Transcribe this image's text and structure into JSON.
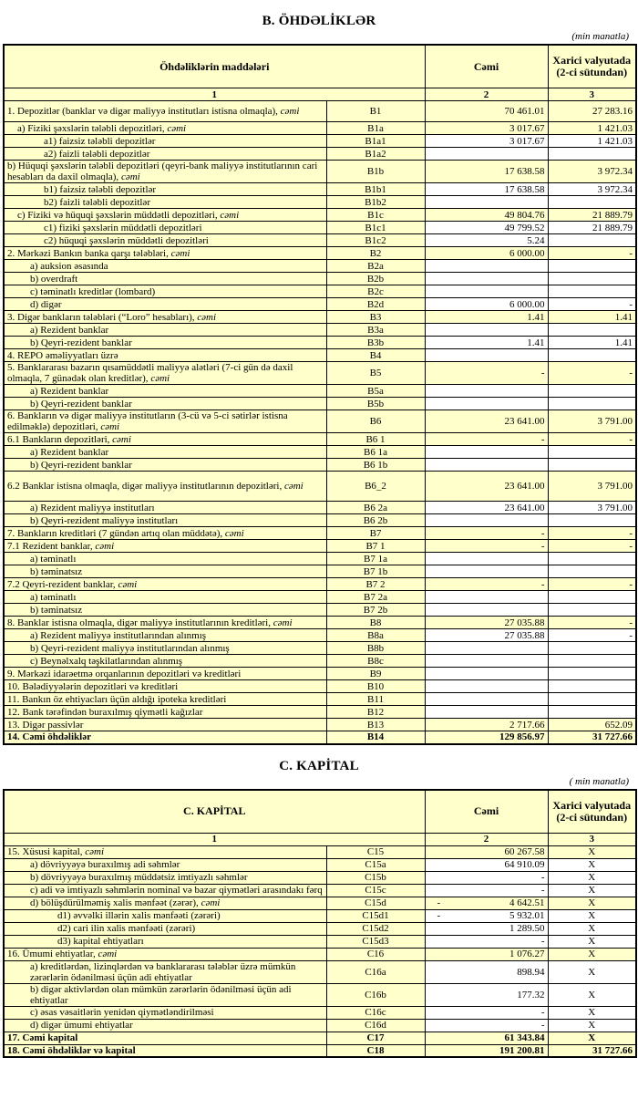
{
  "section_b": {
    "title": "B. ÖHDƏLİKLƏR",
    "unit_note": "(min manatla)",
    "columns": {
      "items": "Öhdəliklərin maddələri",
      "total": "Cəmi",
      "foreign": "Xarici valyutada (2-ci sütundan)",
      "num_items": "1",
      "num_total": "2",
      "num_foreign": "3"
    },
    "rows": [
      {
        "label": "1. Depozitlər (banklar və digər maliyyə institutları istisna olmaqla), ",
        "em": "cəmi",
        "code": "B1",
        "total": "70 461.01",
        "foreign": "27 283.16",
        "white": false,
        "indent": 0,
        "pad": 1
      },
      {
        "label": "a)  Fiziki şəxslərin tələbli depozitləri, ",
        "em": "cəmi",
        "code": "B1a",
        "total": "3 017.67",
        "foreign": "1 421.03",
        "white": false,
        "indent": 1
      },
      {
        "label": "a1) faizsiz tələbli depozitlər",
        "em": "",
        "code": "B1a1",
        "total": "3 017.67",
        "foreign": "1 421.03",
        "white": true,
        "indent": 3
      },
      {
        "label": "a2) faizli tələbli depozitlər",
        "em": "",
        "code": "B1a2",
        "total": "",
        "foreign": "",
        "white": true,
        "indent": 3
      },
      {
        "label": "b) Hüquqi şəxslərin tələbli depozitləri (qeyri-bank maliyyə institutlarının cari hesabları da daxil olmaqla), ",
        "em": "cəmi",
        "code": "B1b",
        "total": "17 638.58",
        "foreign": "3 972.34",
        "white": false,
        "indent": 0
      },
      {
        "label": "b1) faizsiz tələbli depozitlər",
        "em": "",
        "code": "B1b1",
        "total": "17 638.58",
        "foreign": "3 972.34",
        "white": true,
        "indent": 3
      },
      {
        "label": "b2) faizli tələbli depozitlər",
        "em": "",
        "code": "B1b2",
        "total": "",
        "foreign": "",
        "white": true,
        "indent": 3
      },
      {
        "label": "c) Fiziki və hüquqi şəxslərin müddətli depozitləri, ",
        "em": "cəmi",
        "code": "B1c",
        "total": "49 804.76",
        "foreign": "21 889.79",
        "white": false,
        "indent": 1
      },
      {
        "label": "c1) fiziki şəxslərin müddətli depozitləri",
        "em": "",
        "code": "B1c1",
        "total": "49 799.52",
        "foreign": "21 889.79",
        "white": true,
        "indent": 3
      },
      {
        "label": "c2) hüquqi şəxslərin müddətli depozitləri",
        "em": "",
        "code": "B1c2",
        "total": "5.24",
        "foreign": "",
        "white": true,
        "indent": 3
      },
      {
        "label": "2. Mərkəzi Bankın banka qarşı tələbləri, ",
        "em": "cəmi",
        "code": "B2",
        "total": "6 000.00",
        "foreign": "-",
        "white": false,
        "indent": 0
      },
      {
        "label": "a) auksion əsasında",
        "em": "",
        "code": "B2a",
        "total": "",
        "foreign": "",
        "white": true,
        "indent": 2
      },
      {
        "label": "b) overdraft",
        "em": "",
        "code": "B2b",
        "total": "",
        "foreign": "",
        "white": true,
        "indent": 2
      },
      {
        "label": "c) təminatlı kreditlər (lombard)",
        "em": "",
        "code": "B2c",
        "total": "",
        "foreign": "",
        "white": true,
        "indent": 2
      },
      {
        "label": "d) digər",
        "em": "",
        "code": "B2d",
        "total": "6 000.00",
        "foreign": "-",
        "white": true,
        "indent": 2
      },
      {
        "label": "3. Digər bankların tələbləri (“Loro” hesabları), ",
        "em": "cəmi",
        "code": "B3",
        "total": "1.41",
        "foreign": "1.41",
        "white": false,
        "indent": 0
      },
      {
        "label": "a) Rezident banklar",
        "em": "",
        "code": "B3a",
        "total": "",
        "foreign": "",
        "white": true,
        "indent": 2
      },
      {
        "label": "b) Qeyri-rezident banklar",
        "em": "",
        "code": "B3b",
        "total": "1.41",
        "foreign": "1.41",
        "white": true,
        "indent": 2
      },
      {
        "label": "4. REPO əməliyyatları  üzrə",
        "em": "",
        "code": "B4",
        "total": "",
        "foreign": "",
        "white": true,
        "indent": 0
      },
      {
        "label": "5. Banklararası bazarın qısamüddətli maliyyə alətləri (7-ci gün də daxil olmaqla, 7 günədək olan kreditlər), ",
        "em": "cəmi",
        "code": "B5",
        "total": "-",
        "foreign": "-",
        "white": false,
        "indent": 0
      },
      {
        "label": "a) Rezident banklar",
        "em": "",
        "code": "B5a",
        "total": "",
        "foreign": "",
        "white": true,
        "indent": 2
      },
      {
        "label": "b) Qeyri-rezident banklar",
        "em": "",
        "code": "B5b",
        "total": "",
        "foreign": "",
        "white": true,
        "indent": 2
      },
      {
        "label": "6. Bankların və digər maliyyə institutların (3-cü və 5-ci sətirlər istisna edilməklə) depozitləri, ",
        "em": "cəmi",
        "code": "B6",
        "total": "23 641.00",
        "foreign": "3 791.00",
        "white": false,
        "indent": 0
      },
      {
        "label": "6.1  Bankların depozitləri, ",
        "em": "cəmi",
        "code": "B6 1",
        "total": "-",
        "foreign": "-",
        "white": false,
        "indent": 0
      },
      {
        "label": "a) Rezident banklar",
        "em": "",
        "code": "B6 1a",
        "total": "",
        "foreign": "",
        "white": true,
        "indent": 2
      },
      {
        "label": "b) Qeyri-rezident banklar",
        "em": "",
        "code": "B6 1b",
        "total": "",
        "foreign": "",
        "white": true,
        "indent": 2
      },
      {
        "label": "6.2 Banklar istisna olmaqla, digər maliyyə institutlarının depozitləri, ",
        "em": "cəmi",
        "code": "B6_2",
        "total": "23 641.00",
        "foreign": "3 791.00",
        "white": false,
        "indent": 0,
        "pad": 2
      },
      {
        "label": "a) Rezident maliyyə institutları",
        "em": "",
        "code": "B6 2a",
        "total": "23 641.00",
        "foreign": "3 791.00",
        "white": true,
        "indent": 2
      },
      {
        "label": "b) Qeyri-rezident maliyyə institutları",
        "em": "",
        "code": "B6 2b",
        "total": "",
        "foreign": "",
        "white": true,
        "indent": 2
      },
      {
        "label": "7. Bankların kreditləri (7 gündən artıq olan müddətə), ",
        "em": "cəmi",
        "code": "B7",
        "total": "-",
        "foreign": "-",
        "white": false,
        "indent": 0
      },
      {
        "label": "7.1 Rezident banklar, ",
        "em": "cəmi",
        "code": "B7 1",
        "total": "-",
        "foreign": "-",
        "white": false,
        "indent": 0
      },
      {
        "label": "a) təminatlı",
        "em": "",
        "code": "B7 1a",
        "total": "",
        "foreign": "",
        "white": true,
        "indent": 2
      },
      {
        "label": "b) təminatsız",
        "em": "",
        "code": "B7 1b",
        "total": "",
        "foreign": "",
        "white": true,
        "indent": 2
      },
      {
        "label": "7.2 Qeyri-rezident banklar, ",
        "em": "cəmi",
        "code": "B7 2",
        "total": "-",
        "foreign": "-",
        "white": false,
        "indent": 0
      },
      {
        "label": "a) təminatlı",
        "em": "",
        "code": "B7 2a",
        "total": "",
        "foreign": "",
        "white": true,
        "indent": 2
      },
      {
        "label": "b) təminatsız",
        "em": "",
        "code": "B7 2b",
        "total": "",
        "foreign": "",
        "white": true,
        "indent": 2
      },
      {
        "label": "8. Banklar istisna olmaqla, digər maliyyə institutlarının kreditləri, ",
        "em": "cəmi",
        "code": "B8",
        "total": "27 035.88",
        "foreign": "-",
        "white": false,
        "indent": 0
      },
      {
        "label": "a) Rezident maliyyə institutlarından alınmış",
        "em": "",
        "code": "B8a",
        "total": "27 035.88",
        "foreign": "-",
        "white": true,
        "indent": 2
      },
      {
        "label": "b) Qeyri-rezident maliyyə institutlarından alınmış",
        "em": "",
        "code": "B8b",
        "total": "",
        "foreign": "",
        "white": true,
        "indent": 2
      },
      {
        "label": "c) Beynəlxalq təşkilatlarından alınmış",
        "em": "",
        "code": "B8c",
        "total": "",
        "foreign": "",
        "white": true,
        "indent": 2
      },
      {
        "label": "9. Mərkəzi idarəetmə orqanlarının depozitləri və kreditləri",
        "em": "",
        "code": "B9",
        "total": "",
        "foreign": "",
        "white": true,
        "indent": 0
      },
      {
        "label": "10. Bələdiyyələrin depozitləri və kreditləri",
        "em": "",
        "code": "B10",
        "total": "",
        "foreign": "",
        "white": true,
        "indent": 0
      },
      {
        "label": "11. Bankın öz ehtiyacları üçün aldığı ipoteka kreditləri",
        "em": "",
        "code": "B11",
        "total": "",
        "foreign": "",
        "white": true,
        "indent": 0
      },
      {
        "label": "12. Bank tərəfindən buraxılmış qiymətli kağızlar",
        "em": "",
        "code": "B12",
        "total": "",
        "foreign": "",
        "white": true,
        "indent": 0
      },
      {
        "label": "13. Digər passivlər",
        "em": "",
        "code": "B13",
        "total": "2 717.66",
        "foreign": "652.09",
        "white": false,
        "indent": 0
      },
      {
        "label": "14. Cəmi öhdəliklər",
        "em": "",
        "code": "B14",
        "total": "129 856.97",
        "foreign": "31 727.66",
        "white": false,
        "indent": 0,
        "bold": true
      }
    ]
  },
  "section_c": {
    "title": "C. KAPİTAL",
    "unit_note": "( min manatla)",
    "columns": {
      "items": "C. KAPİTAL",
      "total": "Cəmi",
      "foreign": "Xarici valyutada (2-ci sütundan)",
      "num_items": "1",
      "num_total": "2",
      "num_foreign": "3"
    },
    "rows": [
      {
        "label": "15. Xüsusi kapital, ",
        "em": "cəmi",
        "code": "C15",
        "total": "60 267.58",
        "foreign": "X",
        "white": false,
        "indent": 0
      },
      {
        "label": "a) dövriyyəyə buraxılmış adi səhmlər",
        "em": "",
        "code": "C15a",
        "total": "64 910.09",
        "foreign": "X",
        "white": true,
        "indent": 2
      },
      {
        "label": "b) dövriyyəyə buraxılmış müddətsiz imtiyazlı səhmlər",
        "em": "",
        "code": "C15b",
        "total": "-",
        "foreign": "X",
        "white": true,
        "indent": 2
      },
      {
        "label": "c) adi və imtiyazlı səhmlərin nominal və bazar qiymətləri arasındakı fərq",
        "em": "",
        "code": "C15c",
        "total": "-",
        "foreign": "X",
        "white": true,
        "indent": 2
      },
      {
        "label": "d) bölüşdürülməmiş xalis mənfəət (zərər), ",
        "em": "cəmi",
        "code": "C15d",
        "total": "4 642.51",
        "neg": true,
        "foreign": "X",
        "white": false,
        "indent": 2
      },
      {
        "label": "d1) əvvəlki illərin xalis mənfəəti (zərəri)",
        "em": "",
        "code": "C15d1",
        "total": "5 932.01",
        "neg": true,
        "foreign": "X",
        "white": true,
        "indent": 4
      },
      {
        "label": "d2) cari ilin xalis mənfəəti (zərəri)",
        "em": "",
        "code": "C15d2",
        "total": "1 289.50",
        "foreign": "X",
        "white": true,
        "indent": 4
      },
      {
        "label": "d3) kapital ehtiyatları",
        "em": "",
        "code": "C15d3",
        "total": "-",
        "foreign": "X",
        "white": true,
        "indent": 4
      },
      {
        "label": "16. Ümumi ehtiyatlar, ",
        "em": "cəmi",
        "code": "C16",
        "total": "1 076.27",
        "foreign": "X",
        "white": false,
        "indent": 0
      },
      {
        "label": "a) kreditlərdən, lizinqlərdən və banklararası  tələblər üzrə mümkün zərərlərin ödənilməsi üçün adi ehtiyatlar",
        "em": "",
        "code": "C16a",
        "total": "898.94",
        "foreign": "X",
        "white": true,
        "indent": 2
      },
      {
        "label": "b) digər aktivlərdən olan mümkün zərərlərin ödənilməsi üçün adi ehtiyatlar",
        "em": "",
        "code": "C16b",
        "total": "177.32",
        "foreign": "X",
        "white": true,
        "indent": 2
      },
      {
        "label": "c) əsas vəsaitlərin yenidən qiymətləndirilməsi",
        "em": "",
        "code": "C16c",
        "total": "-",
        "foreign": "X",
        "white": true,
        "indent": 2
      },
      {
        "label": "d) digər ümumi ehtiyatlar",
        "em": "",
        "code": "C16d",
        "total": "-",
        "foreign": "X",
        "white": true,
        "indent": 2
      },
      {
        "label": "17. Cəmi kapital",
        "em": "",
        "code": "C17",
        "total": "61 343.84",
        "foreign": "X",
        "white": false,
        "indent": 0,
        "bold": true
      },
      {
        "label": "18. Cəmi öhdəliklər və kapital",
        "em": "",
        "code": "C18",
        "total": "191 200.81",
        "foreign": "31 727.66",
        "white": false,
        "indent": 0,
        "bold": true
      }
    ]
  }
}
